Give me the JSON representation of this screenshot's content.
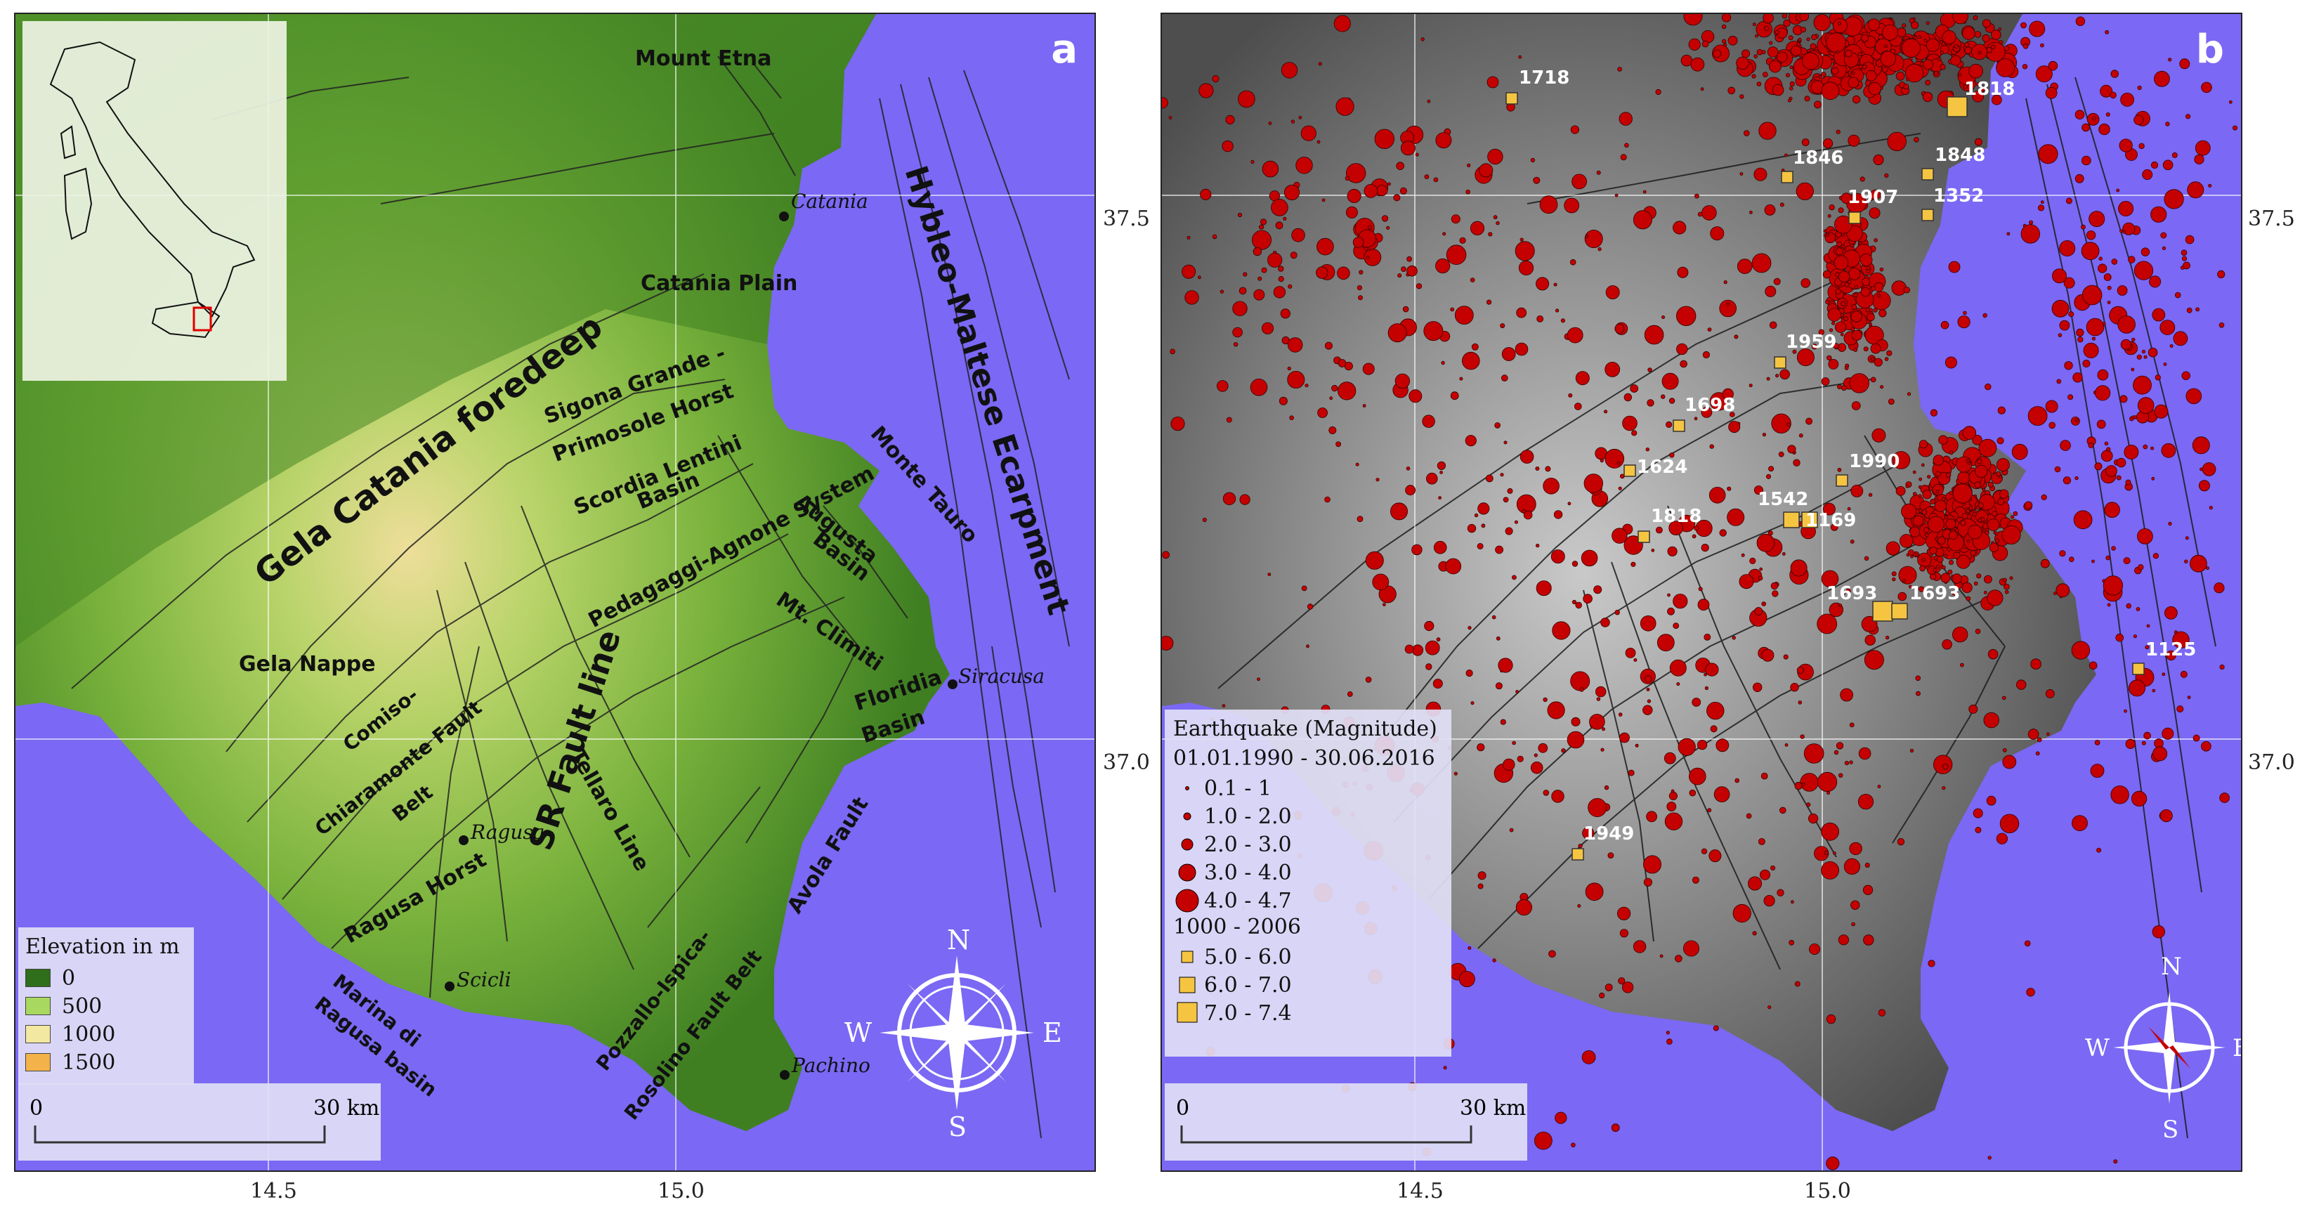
{
  "panel_a": {
    "letter": "a",
    "places": {
      "mount_etna": "Mount Etna",
      "catania": "Catania",
      "catania_plain": "Catania Plain",
      "siracusa": "Siracusa",
      "ragusa": "Ragusa",
      "scicli": "Scicli",
      "pachino": "Pachino"
    },
    "structures": {
      "gela_catania_foredeep": "Gela Catania foredeep",
      "hybleo_maltese": "Hybleo-Maltese Ecarpment",
      "sigona_grande": "Sigona Grande -",
      "primosole_horst": "Primosole Horst",
      "scordia_lentini": "Scordia Lentini",
      "basin": "Basin",
      "pedagaggi": "Pedagaggi-Agnone System",
      "monte_tauro": "Monte Tauro",
      "augusta": "Augusta",
      "augusta_basin": "Basin",
      "mt_climiti": "Mt. Climiti",
      "gela_nappe": "Gela Nappe",
      "sr_fault": "SR Fault line",
      "floridia": "Floridia",
      "floridia_basin": "Basin",
      "comiso1": "Comiso-",
      "comiso2": "Chiaramonte Fault",
      "comiso3": "Belt",
      "tellaro": "Tellaro Line",
      "ragusa_horst": "Ragusa Horst",
      "avola": "Avola Fault",
      "marina1": "Marina di",
      "marina2": "Ragusa basin",
      "pozzallo1": "Pozzallo-Ispica-",
      "pozzallo2": "Rosolino Fault Belt"
    },
    "legend": {
      "title": "Elevation in m",
      "items": [
        {
          "label": "0",
          "color": "#2f6e1a"
        },
        {
          "label": "500",
          "color": "#a9d860"
        },
        {
          "label": "1000",
          "color": "#f3e8a2"
        },
        {
          "label": "1500",
          "color": "#f3b24a"
        }
      ]
    },
    "scale": {
      "left": "0",
      "right": "30 km"
    }
  },
  "panel_b": {
    "letter": "b",
    "legend": {
      "title": "Earthquake (Magnitude)",
      "period1": "01.01.1990 - 30.06.2016",
      "circles": [
        "0.1 - 1",
        "1.0 - 2.0",
        "2.0 - 3.0",
        "3.0 - 4.0",
        "4.0 - 4.7"
      ],
      "period2": "1000 - 2006",
      "squares": [
        "5.0 - 6.0",
        "6.0 - 7.0",
        "7.0 - 7.4"
      ]
    },
    "historic_years": [
      "1718",
      "1818",
      "1846",
      "1848",
      "1907",
      "1352",
      "1959",
      "1698",
      "1624",
      "1990",
      "1542",
      "1169",
      "1818",
      "1693",
      "1693",
      "1125",
      "1949"
    ],
    "scale": {
      "left": "0",
      "right": "30 km"
    }
  },
  "axes": {
    "x_ticks": [
      "14.5",
      "15.0"
    ],
    "y_ticks": [
      "37.5",
      "37.0"
    ]
  },
  "compass": {
    "n": "N",
    "s": "S",
    "e": "E",
    "w": "W"
  },
  "colors": {
    "sea": "#7b68f4",
    "quake_fill": "#c40000",
    "historic_fill": "#f5c542",
    "inset_bg": "#eef3e4"
  }
}
